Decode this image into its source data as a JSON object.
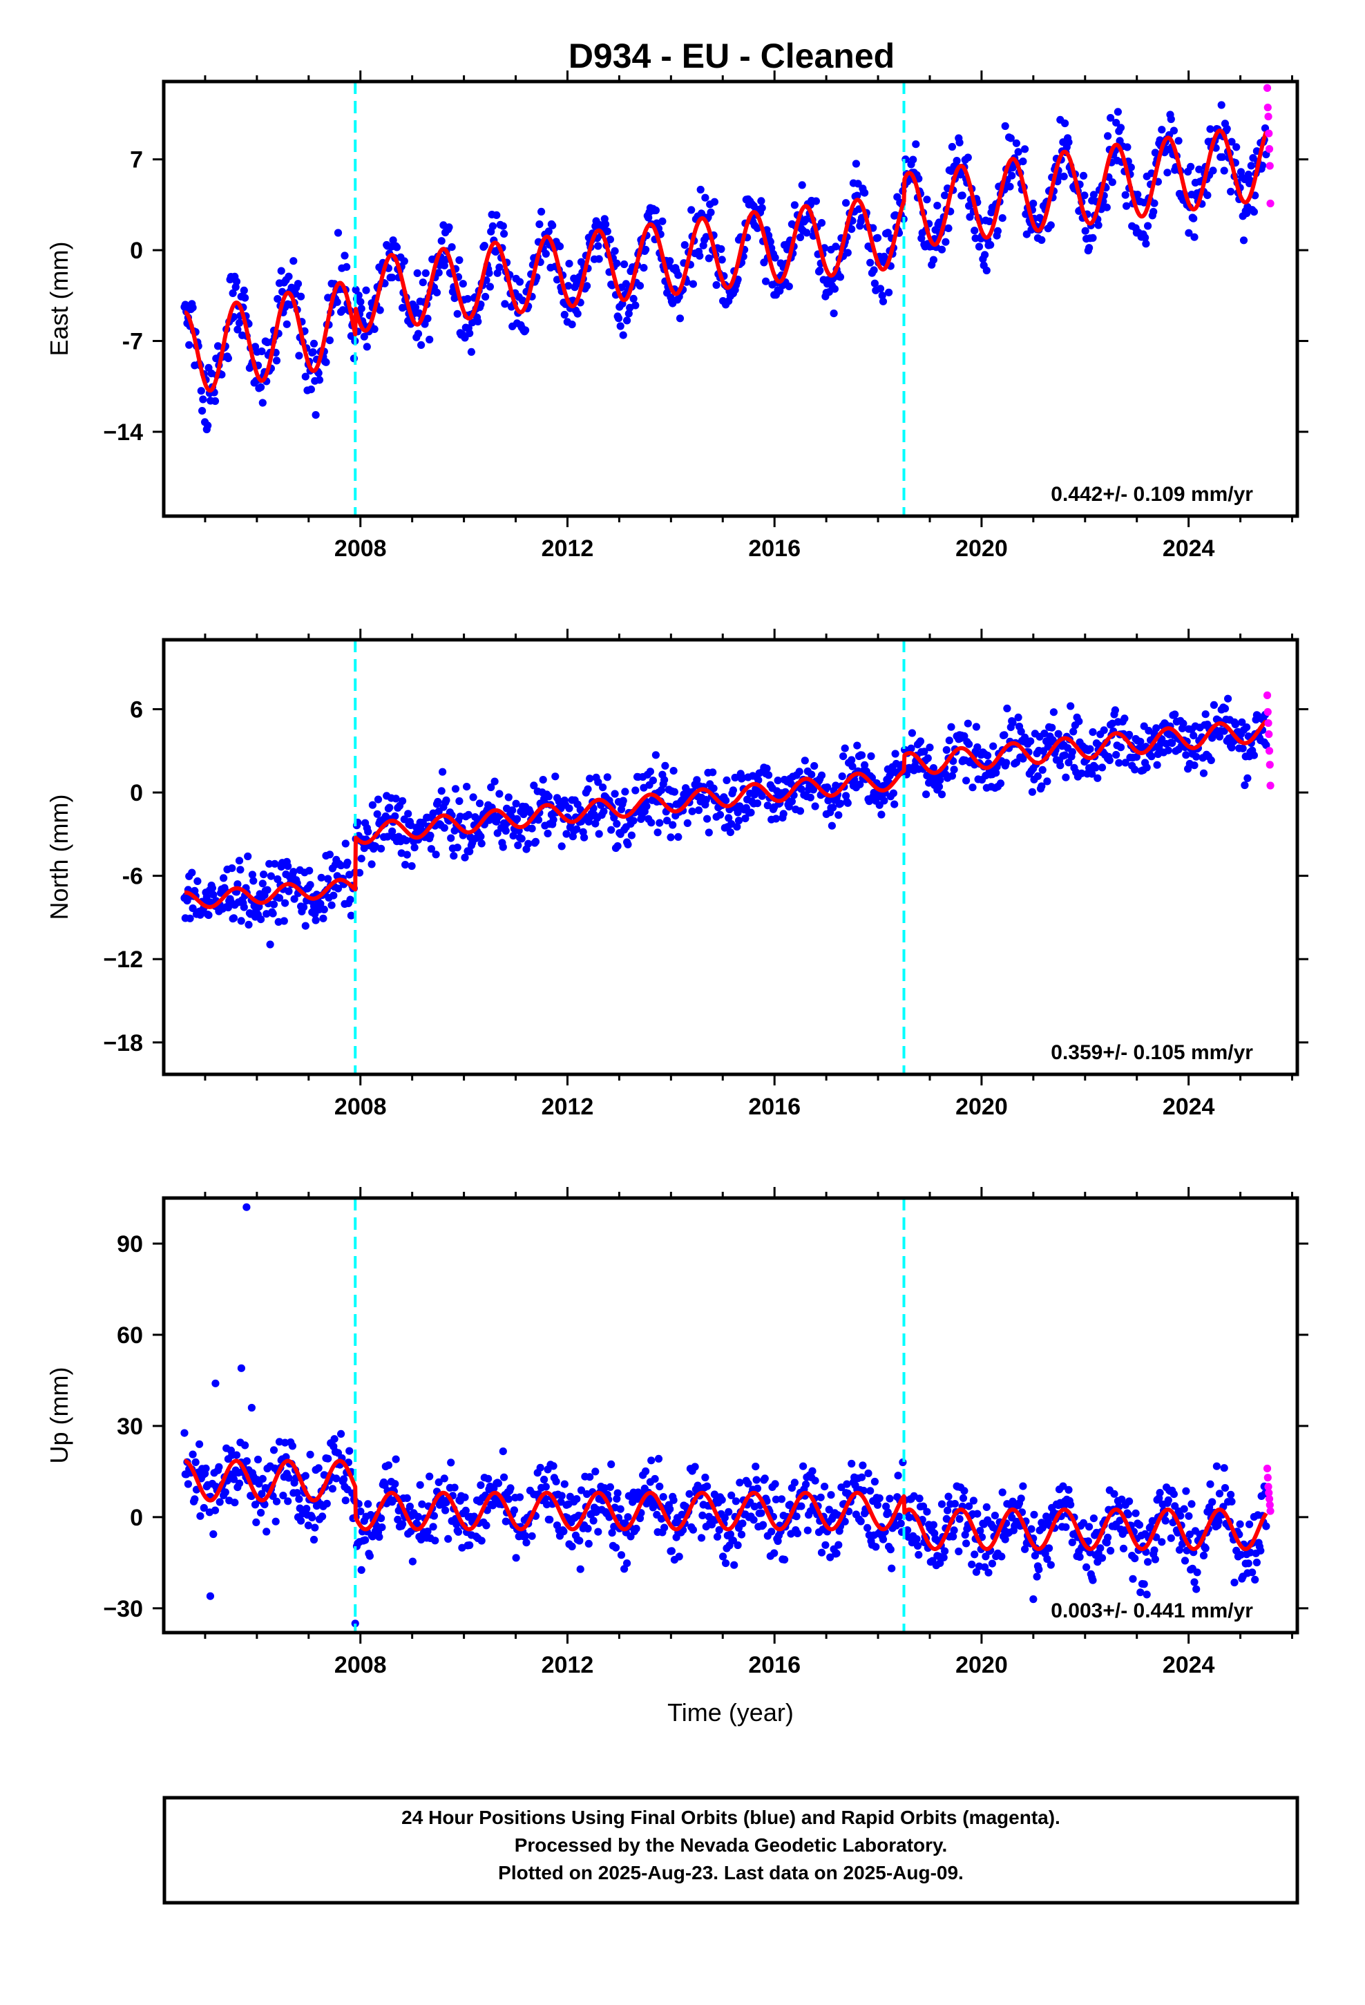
{
  "title": "D934  - EU - Cleaned",
  "footer": {
    "line1": "24 Hour Positions Using Final Orbits (blue) and Rapid Orbits (magenta).",
    "line2": "Processed by the Nevada Geodetic Laboratory.",
    "line3": "Plotted on 2025-Aug-23. Last data on 2025-Aug-09."
  },
  "colors": {
    "final": "#0000ff",
    "rapid": "#ff00ff",
    "model": "#ff0000",
    "event": "#00ffff"
  },
  "chart_data": [
    {
      "type": "scatter",
      "ylabel": "East (mm)",
      "rate": "0.442+/- 0.109 mm/yr",
      "xlim": [
        2004.2,
        2026.1
      ],
      "ylim": [
        -20.5,
        13
      ],
      "xticks": [
        {
          "v": 2008,
          "t": "2008"
        },
        {
          "v": 2012,
          "t": "2012"
        },
        {
          "v": 2016,
          "t": "2016"
        },
        {
          "v": 2020,
          "t": "2020"
        },
        {
          "v": 2024,
          "t": "2024"
        }
      ],
      "yticks": [
        {
          "v": 7,
          "t": "7"
        },
        {
          "v": 0,
          "t": "0"
        },
        {
          "v": -7,
          "t": "-7"
        },
        {
          "v": -14,
          "t": "−14"
        }
      ],
      "event_lines": [
        2007.9,
        2018.5
      ],
      "model_fit": {
        "start": 2004.6,
        "end": 2025.5,
        "trend_mm_per_yr": 0.442,
        "segments": [
          {
            "t0": 2004.6,
            "t1": 2007.9,
            "base": [
              -8.0,
              -5.5
            ],
            "amp": 3.2
          },
          {
            "t0": 2007.9,
            "t1": 2018.5,
            "base": [
              -3.5,
              1.5
            ],
            "amp": 2.8
          },
          {
            "t0": 2018.5,
            "t1": 2025.5,
            "base": [
              3.0,
              6.8
            ],
            "amp": 2.9
          }
        ]
      },
      "scatter_spread": 1.4,
      "rapid_points": [
        {
          "x": 2025.52,
          "y": 12.5
        },
        {
          "x": 2025.53,
          "y": 11.0
        },
        {
          "x": 2025.54,
          "y": 10.3
        },
        {
          "x": 2025.55,
          "y": 9.0
        },
        {
          "x": 2025.56,
          "y": 7.8
        },
        {
          "x": 2025.57,
          "y": 6.5
        },
        {
          "x": 2025.58,
          "y": 3.6
        }
      ]
    },
    {
      "type": "scatter",
      "ylabel": "North (mm)",
      "rate": "0.359+/- 0.105 mm/yr",
      "xlim": [
        2004.2,
        2026.1
      ],
      "ylim": [
        -20.3,
        11
      ],
      "xticks": [
        {
          "v": 2008,
          "t": "2008"
        },
        {
          "v": 2012,
          "t": "2012"
        },
        {
          "v": 2016,
          "t": "2016"
        },
        {
          "v": 2020,
          "t": "2020"
        },
        {
          "v": 2024,
          "t": "2024"
        }
      ],
      "yticks": [
        {
          "v": 6,
          "t": "6"
        },
        {
          "v": 0,
          "t": "0"
        },
        {
          "v": -6,
          "t": "-6"
        },
        {
          "v": -12,
          "t": "−12"
        },
        {
          "v": -18,
          "t": "−18"
        }
      ],
      "event_lines": [
        2007.9,
        2018.5
      ],
      "model_fit": {
        "start": 2004.6,
        "end": 2025.5,
        "trend_mm_per_yr": 0.359,
        "segments": [
          {
            "t0": 2004.6,
            "t1": 2007.9,
            "base": [
              -7.8,
              -6.8
            ],
            "amp": 0.6
          },
          {
            "t0": 2007.9,
            "t1": 2018.5,
            "base": [
              -3.0,
              1.0
            ],
            "amp": 0.7
          },
          {
            "t0": 2018.5,
            "t1": 2025.5,
            "base": [
              2.0,
              4.5
            ],
            "amp": 0.8
          }
        ]
      },
      "scatter_spread": 1.1,
      "rapid_points": [
        {
          "x": 2025.52,
          "y": 7.0
        },
        {
          "x": 2025.53,
          "y": 5.8
        },
        {
          "x": 2025.54,
          "y": 5.0
        },
        {
          "x": 2025.55,
          "y": 4.2
        },
        {
          "x": 2025.56,
          "y": 3.0
        },
        {
          "x": 2025.57,
          "y": 2.0
        },
        {
          "x": 2025.58,
          "y": 0.5
        }
      ]
    },
    {
      "type": "scatter",
      "ylabel": "Up (mm)",
      "rate": "0.003+/- 0.441 mm/yr",
      "xlim": [
        2004.2,
        2026.1
      ],
      "ylim": [
        -38,
        105
      ],
      "xlabel": "Time (year)",
      "xticks": [
        {
          "v": 2008,
          "t": "2008"
        },
        {
          "v": 2012,
          "t": "2012"
        },
        {
          "v": 2016,
          "t": "2016"
        },
        {
          "v": 2020,
          "t": "2020"
        },
        {
          "v": 2024,
          "t": "2024"
        }
      ],
      "yticks": [
        {
          "v": 90,
          "t": "90"
        },
        {
          "v": 60,
          "t": "60"
        },
        {
          "v": 30,
          "t": "30"
        },
        {
          "v": 0,
          "t": "0"
        },
        {
          "v": -30,
          "t": "−30"
        }
      ],
      "event_lines": [
        2007.9,
        2018.5
      ],
      "model_fit": {
        "start": 2004.6,
        "end": 2025.5,
        "trend_mm_per_yr": 0.003,
        "segments": [
          {
            "t0": 2004.6,
            "t1": 2007.9,
            "base": [
              12,
              12
            ],
            "amp": 6.5
          },
          {
            "t0": 2007.9,
            "t1": 2018.5,
            "base": [
              2,
              2
            ],
            "amp": 6.0
          },
          {
            "t0": 2018.5,
            "t1": 2025.5,
            "base": [
              -4,
              -4
            ],
            "amp": 6.5
          }
        ]
      },
      "scatter_spread": 6.0,
      "outliers": [
        {
          "x": 2005.8,
          "y": 102
        },
        {
          "x": 2005.7,
          "y": 49
        },
        {
          "x": 2005.2,
          "y": 44
        },
        {
          "x": 2005.9,
          "y": 36
        },
        {
          "x": 2005.1,
          "y": -26
        },
        {
          "x": 2007.9,
          "y": -35
        },
        {
          "x": 2021.0,
          "y": -27
        }
      ],
      "rapid_points": [
        {
          "x": 2025.52,
          "y": 16
        },
        {
          "x": 2025.53,
          "y": 13
        },
        {
          "x": 2025.54,
          "y": 10
        },
        {
          "x": 2025.55,
          "y": 8
        },
        {
          "x": 2025.56,
          "y": 6
        },
        {
          "x": 2025.57,
          "y": 4
        },
        {
          "x": 2025.58,
          "y": 2
        }
      ]
    }
  ]
}
